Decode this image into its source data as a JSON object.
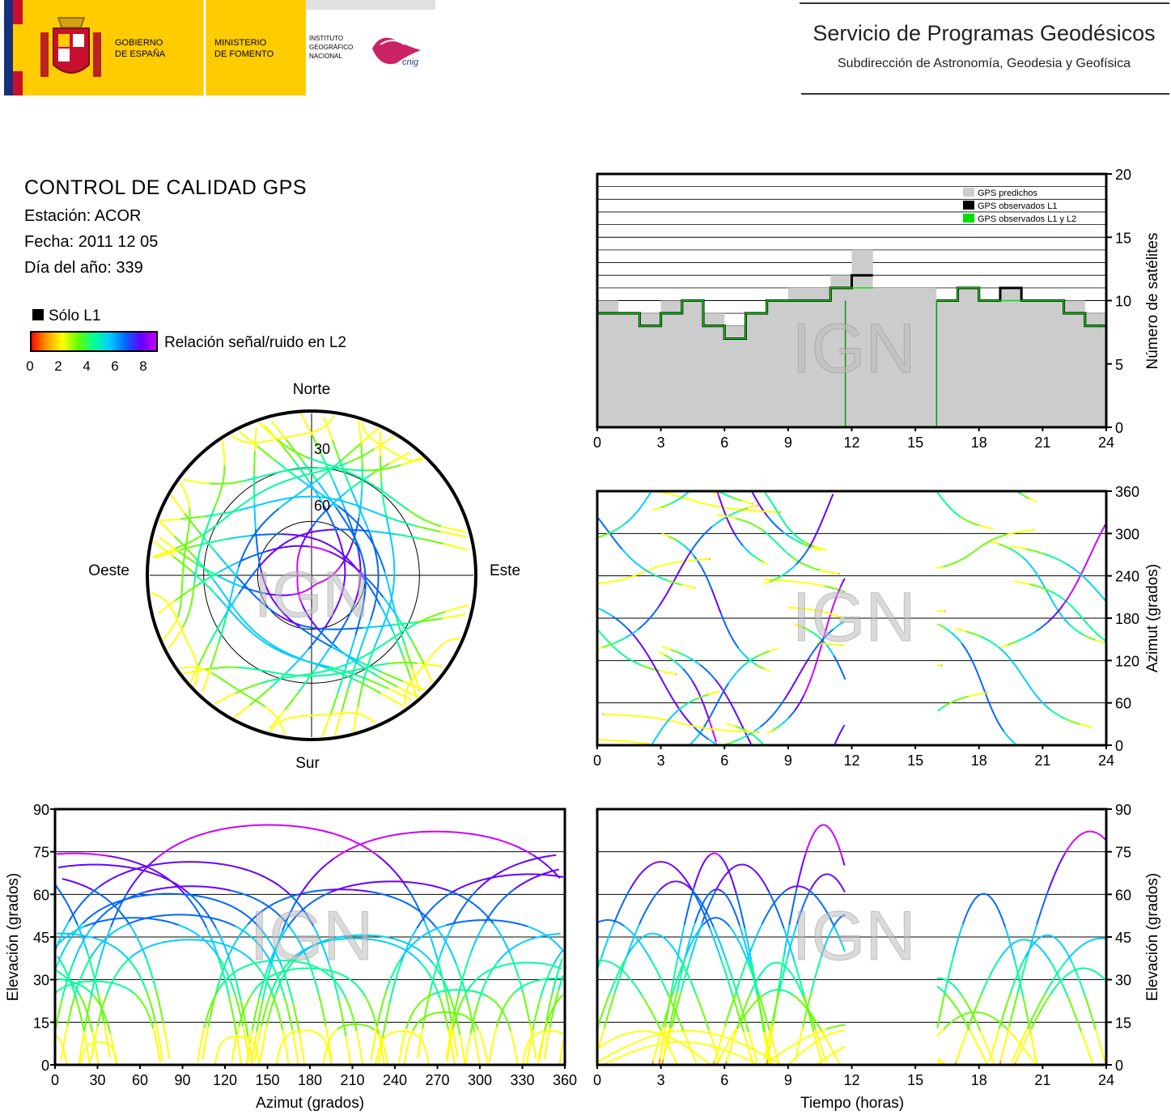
{
  "header": {
    "gov_line1": "GOBIERNO",
    "gov_line2": "DE ESPAÑA",
    "ministry_line1": "MINISTERIO",
    "ministry_line2": "DE FOMENTO",
    "inst_line1": "INSTITUTO",
    "inst_line2": "GEOGRÁFICO",
    "inst_line3": "NACIONAL",
    "cnig": "cnig",
    "service_title": "Servicio de Programas Geodésicos",
    "service_subtitle": "Subdirección de Astronomía, Geodesia y Geofísica"
  },
  "info": {
    "title": "CONTROL DE CALIDAD GPS",
    "station": "Estación: ACOR",
    "date": "Fecha: 2011 12 05",
    "doy": "Día del año: 339"
  },
  "legend": {
    "only_l1": "Sólo L1",
    "snr_label": "Relación señal/ruido en L2",
    "ticks": [
      "0",
      "2",
      "4",
      "6",
      "8"
    ]
  },
  "watermark": "IGN",
  "colors": {
    "predicted": "#cccccc",
    "observed_l1": "#000000",
    "observed_l1_l2": "#00e000",
    "snr_gradient": [
      "#ff0000",
      "#ff9900",
      "#ffff00",
      "#66ff00",
      "#00ff99",
      "#00ccff",
      "#0066ff",
      "#6600ff",
      "#cc00ff"
    ]
  },
  "chart_data": [
    {
      "type": "area",
      "id": "sat-count",
      "x": [
        0,
        1,
        2,
        3,
        4,
        5,
        6,
        7,
        8,
        9,
        10,
        11,
        12,
        13,
        14,
        15,
        16,
        17,
        18,
        19,
        20,
        21,
        22,
        23,
        24
      ],
      "series": [
        {
          "name": "GPS predichos",
          "values": [
            10,
            9,
            9,
            10,
            10,
            9,
            8,
            9,
            10,
            11,
            11,
            12,
            14,
            11,
            11,
            11,
            10,
            11,
            10,
            11,
            10,
            10,
            10,
            9,
            9
          ]
        },
        {
          "name": "GPS observados L1",
          "values": [
            9,
            9,
            8,
            9,
            10,
            8,
            7,
            9,
            10,
            10,
            10,
            11,
            12,
            0,
            0,
            0,
            10,
            11,
            10,
            11,
            10,
            10,
            9,
            8,
            9
          ]
        },
        {
          "name": "GPS observados L1 y L2",
          "values": [
            9,
            9,
            8,
            9,
            10,
            8,
            7,
            9,
            10,
            10,
            10,
            11,
            11,
            0,
            0,
            0,
            10,
            11,
            10,
            10,
            10,
            10,
            9,
            8,
            9
          ]
        }
      ],
      "xlim": [
        0,
        24
      ],
      "ylim": [
        0,
        20
      ],
      "xticks": [
        "0",
        "3",
        "6",
        "9",
        "12",
        "15",
        "18",
        "21",
        "24"
      ],
      "yticks": [
        "0",
        "5",
        "10",
        "15",
        "20"
      ],
      "ylabel": "Número de satélites",
      "legend_position": "top-right",
      "data_gap_hours": [
        11.7,
        16
      ]
    },
    {
      "type": "scatter",
      "id": "azimuth-time",
      "xlim": [
        0,
        24
      ],
      "ylim": [
        0,
        360
      ],
      "xticks": [
        "0",
        "3",
        "6",
        "9",
        "12",
        "15",
        "18",
        "21",
        "24"
      ],
      "yticks": [
        "0",
        "60",
        "120",
        "180",
        "240",
        "300",
        "360"
      ],
      "ylabel": "Azimut (grados)",
      "data_gap_hours": [
        11.7,
        16
      ]
    },
    {
      "type": "scatter",
      "id": "sky-plot",
      "cardinal": [
        "Norte",
        "Sur",
        "Este",
        "Oeste"
      ],
      "ring_labels": [
        "30",
        "60"
      ]
    },
    {
      "type": "scatter",
      "id": "elevation-azimuth",
      "xlim": [
        0,
        360
      ],
      "ylim": [
        0,
        90
      ],
      "xticks": [
        "0",
        "30",
        "60",
        "90",
        "120",
        "150",
        "180",
        "210",
        "240",
        "270",
        "300",
        "330",
        "360"
      ],
      "yticks": [
        "0",
        "15",
        "30",
        "45",
        "60",
        "75",
        "90"
      ],
      "xlabel": "Azimut (grados)",
      "ylabel": "Elevación (grados)"
    },
    {
      "type": "scatter",
      "id": "elevation-time",
      "xlim": [
        0,
        24
      ],
      "ylim": [
        0,
        90
      ],
      "xticks": [
        "0",
        "3",
        "6",
        "9",
        "12",
        "15",
        "18",
        "21",
        "24"
      ],
      "yticks": [
        "0",
        "15",
        "30",
        "45",
        "60",
        "75",
        "90"
      ],
      "xlabel": "Tiempo (horas)",
      "ylabel": "Elevación (grados)",
      "data_gap_hours": [
        11.7,
        16
      ]
    }
  ]
}
